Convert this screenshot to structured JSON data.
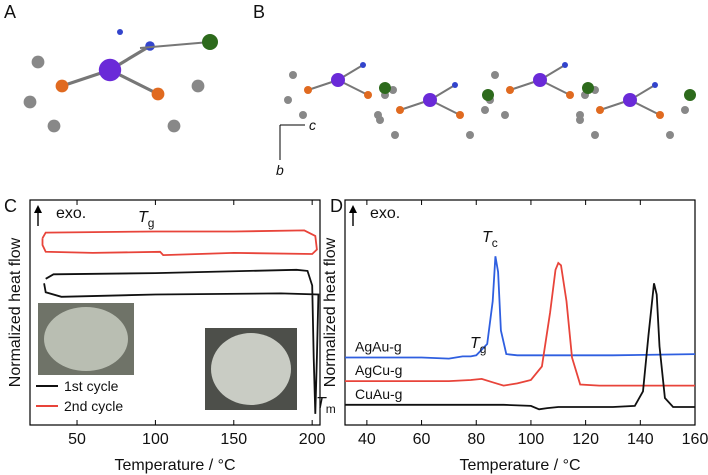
{
  "panel_labels": [
    "A",
    "B",
    "C",
    "D"
  ],
  "structure_axes": [
    "c",
    "b"
  ],
  "chart_data": [
    {
      "type": "line",
      "xlabel": "Temperature / °C",
      "ylabel": "Normalized heat flow",
      "xlim": [
        20,
        205
      ],
      "xticks": [
        50,
        100,
        150,
        200
      ],
      "ylim": [
        0,
        10
      ],
      "annotations": [
        {
          "text": "exo."
        },
        {
          "text": "T",
          "sub": "g"
        },
        {
          "text": "T",
          "sub": "m"
        }
      ],
      "series": [
        {
          "name": "1st cycle",
          "color": "#111111",
          "x": [
            30,
            35,
            100,
            190,
            197,
            200,
            201,
            202,
            203,
            204,
            180,
            100,
            40,
            30,
            29
          ],
          "values": [
            6.5,
            6.7,
            6.75,
            6.9,
            6.85,
            6.2,
            3,
            0.5,
            3,
            5.8,
            5.85,
            5.8,
            5.7,
            5.9,
            6.3
          ]
        },
        {
          "name": "2nd cycle",
          "color": "#e8443a",
          "x": [
            28,
            30,
            100,
            150,
            195,
            202,
            203,
            200,
            150,
            105,
            103,
            60,
            30,
            28,
            28
          ],
          "values": [
            8.3,
            8.55,
            8.6,
            8.6,
            8.65,
            8.4,
            7.8,
            7.6,
            7.65,
            7.55,
            7.7,
            7.65,
            7.7,
            8.0,
            8.3
          ]
        }
      ]
    },
    {
      "type": "line",
      "xlabel": "Temperature / °C",
      "ylabel": "Normalized heat flow",
      "xlim": [
        32,
        160
      ],
      "xticks": [
        40,
        60,
        80,
        100,
        120,
        140,
        160
      ],
      "ylim": [
        0,
        10
      ],
      "annotations": [
        {
          "text": "exo."
        },
        {
          "text": "T",
          "sub": "c"
        },
        {
          "text": "T",
          "sub": "g"
        }
      ],
      "series": [
        {
          "name": "AgAu-g",
          "color": "#2f5fe0",
          "x": [
            32,
            60,
            70,
            75,
            78,
            80,
            84,
            86,
            87,
            88,
            89,
            91,
            95,
            110,
            130,
            160
          ],
          "values": [
            3.0,
            3.0,
            2.95,
            3.05,
            3.05,
            3.1,
            3.6,
            5.5,
            7.5,
            6.8,
            4.2,
            3.15,
            3.1,
            3.1,
            3.1,
            3.15
          ]
        },
        {
          "name": "AgCu-g",
          "color": "#e8443a",
          "x": [
            32,
            70,
            78,
            82,
            86,
            90,
            95,
            100,
            104,
            107,
            109,
            110,
            111,
            113,
            115,
            118,
            125,
            140,
            160
          ],
          "values": [
            1.95,
            1.95,
            2.0,
            2.05,
            1.9,
            1.75,
            1.85,
            2.0,
            2.6,
            5.0,
            6.9,
            7.2,
            7.1,
            5.5,
            3.0,
            1.8,
            1.75,
            1.75,
            1.75
          ]
        },
        {
          "name": "CuAu-g",
          "color": "#111111",
          "x": [
            32,
            90,
            100,
            103,
            106,
            110,
            130,
            138,
            141,
            143,
            145,
            146,
            147,
            149,
            152,
            160
          ],
          "values": [
            0.9,
            0.9,
            0.85,
            0.7,
            0.75,
            0.8,
            0.8,
            0.85,
            1.5,
            4.0,
            6.3,
            5.8,
            3.5,
            1.2,
            0.8,
            0.8
          ]
        }
      ]
    }
  ]
}
